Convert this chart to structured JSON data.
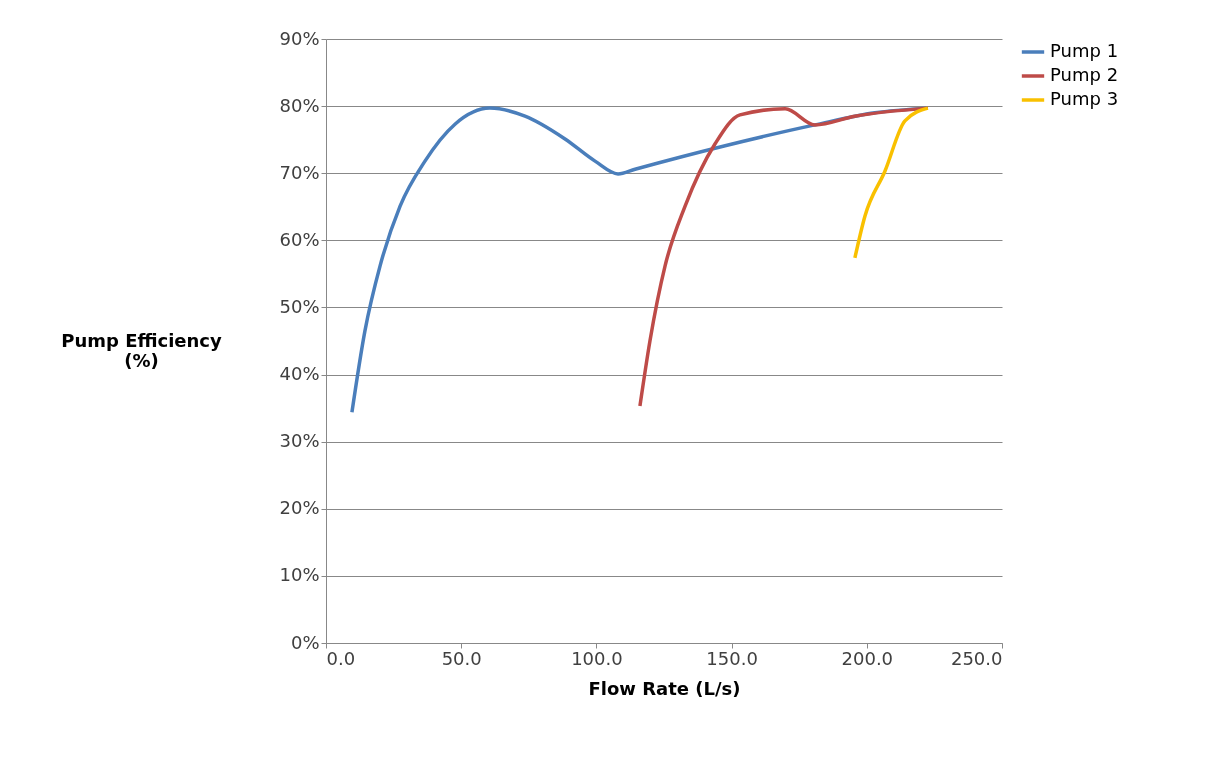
{
  "chart_data": {
    "type": "line",
    "xlabel": "Flow Rate (L/s)",
    "ylabel": "Pump Efficiency (%)",
    "xlim": [
      0,
      250
    ],
    "ylim": [
      0,
      90
    ],
    "xticks": [
      {
        "value": 0,
        "label": "0.0"
      },
      {
        "value": 50,
        "label": "50.0"
      },
      {
        "value": 100,
        "label": "100.0"
      },
      {
        "value": 150,
        "label": "150.0"
      },
      {
        "value": 200,
        "label": "200.0"
      },
      {
        "value": 250,
        "label": "250.0"
      }
    ],
    "yticks": [
      {
        "value": 0,
        "label": "0%"
      },
      {
        "value": 10,
        "label": "10%"
      },
      {
        "value": 20,
        "label": "20%"
      },
      {
        "value": 30,
        "label": "30%"
      },
      {
        "value": 40,
        "label": "40%"
      },
      {
        "value": 50,
        "label": "50%"
      },
      {
        "value": 60,
        "label": "60%"
      },
      {
        "value": 70,
        "label": "70%"
      },
      {
        "value": 80,
        "label": "80%"
      },
      {
        "value": 90,
        "label": "90%"
      }
    ],
    "grid": "y",
    "legend": "right",
    "marker": "none",
    "line_style": "solid",
    "series": [
      {
        "name": "Pump 1",
        "color": "#4a7ebb",
        "x": [
          9.6,
          14.4,
          20.0,
          27.4,
          36.6,
          47.7,
          60.6,
          73.6,
          88.4,
          99.5,
          108.0,
          114.3,
          147.6,
          180.8,
          203.0,
          222.6
        ],
        "values": [
          34.4,
          46.5,
          56.2,
          65.1,
          71.8,
          77.3,
          79.7,
          78.5,
          75.1,
          71.8,
          69.9,
          70.6,
          74.1,
          77.2,
          79.0,
          79.7
        ]
      },
      {
        "name": "Pump 2",
        "color": "#be4b48",
        "x": [
          116.1,
          119.8,
          125.4,
          132.8,
          143.9,
          153.1,
          169.8,
          180.8,
          195.6,
          222.6
        ],
        "values": [
          35.3,
          45.0,
          56.2,
          65.1,
          74.4,
          78.7,
          79.6,
          77.2,
          78.5,
          79.7
        ]
      },
      {
        "name": "Pump 3",
        "color": "#f9c000",
        "x": [
          195.6,
          199.3,
          206.7,
          214.1,
          222.6
        ],
        "values": [
          57.4,
          63.6,
          70.3,
          77.8,
          79.7
        ]
      }
    ]
  }
}
